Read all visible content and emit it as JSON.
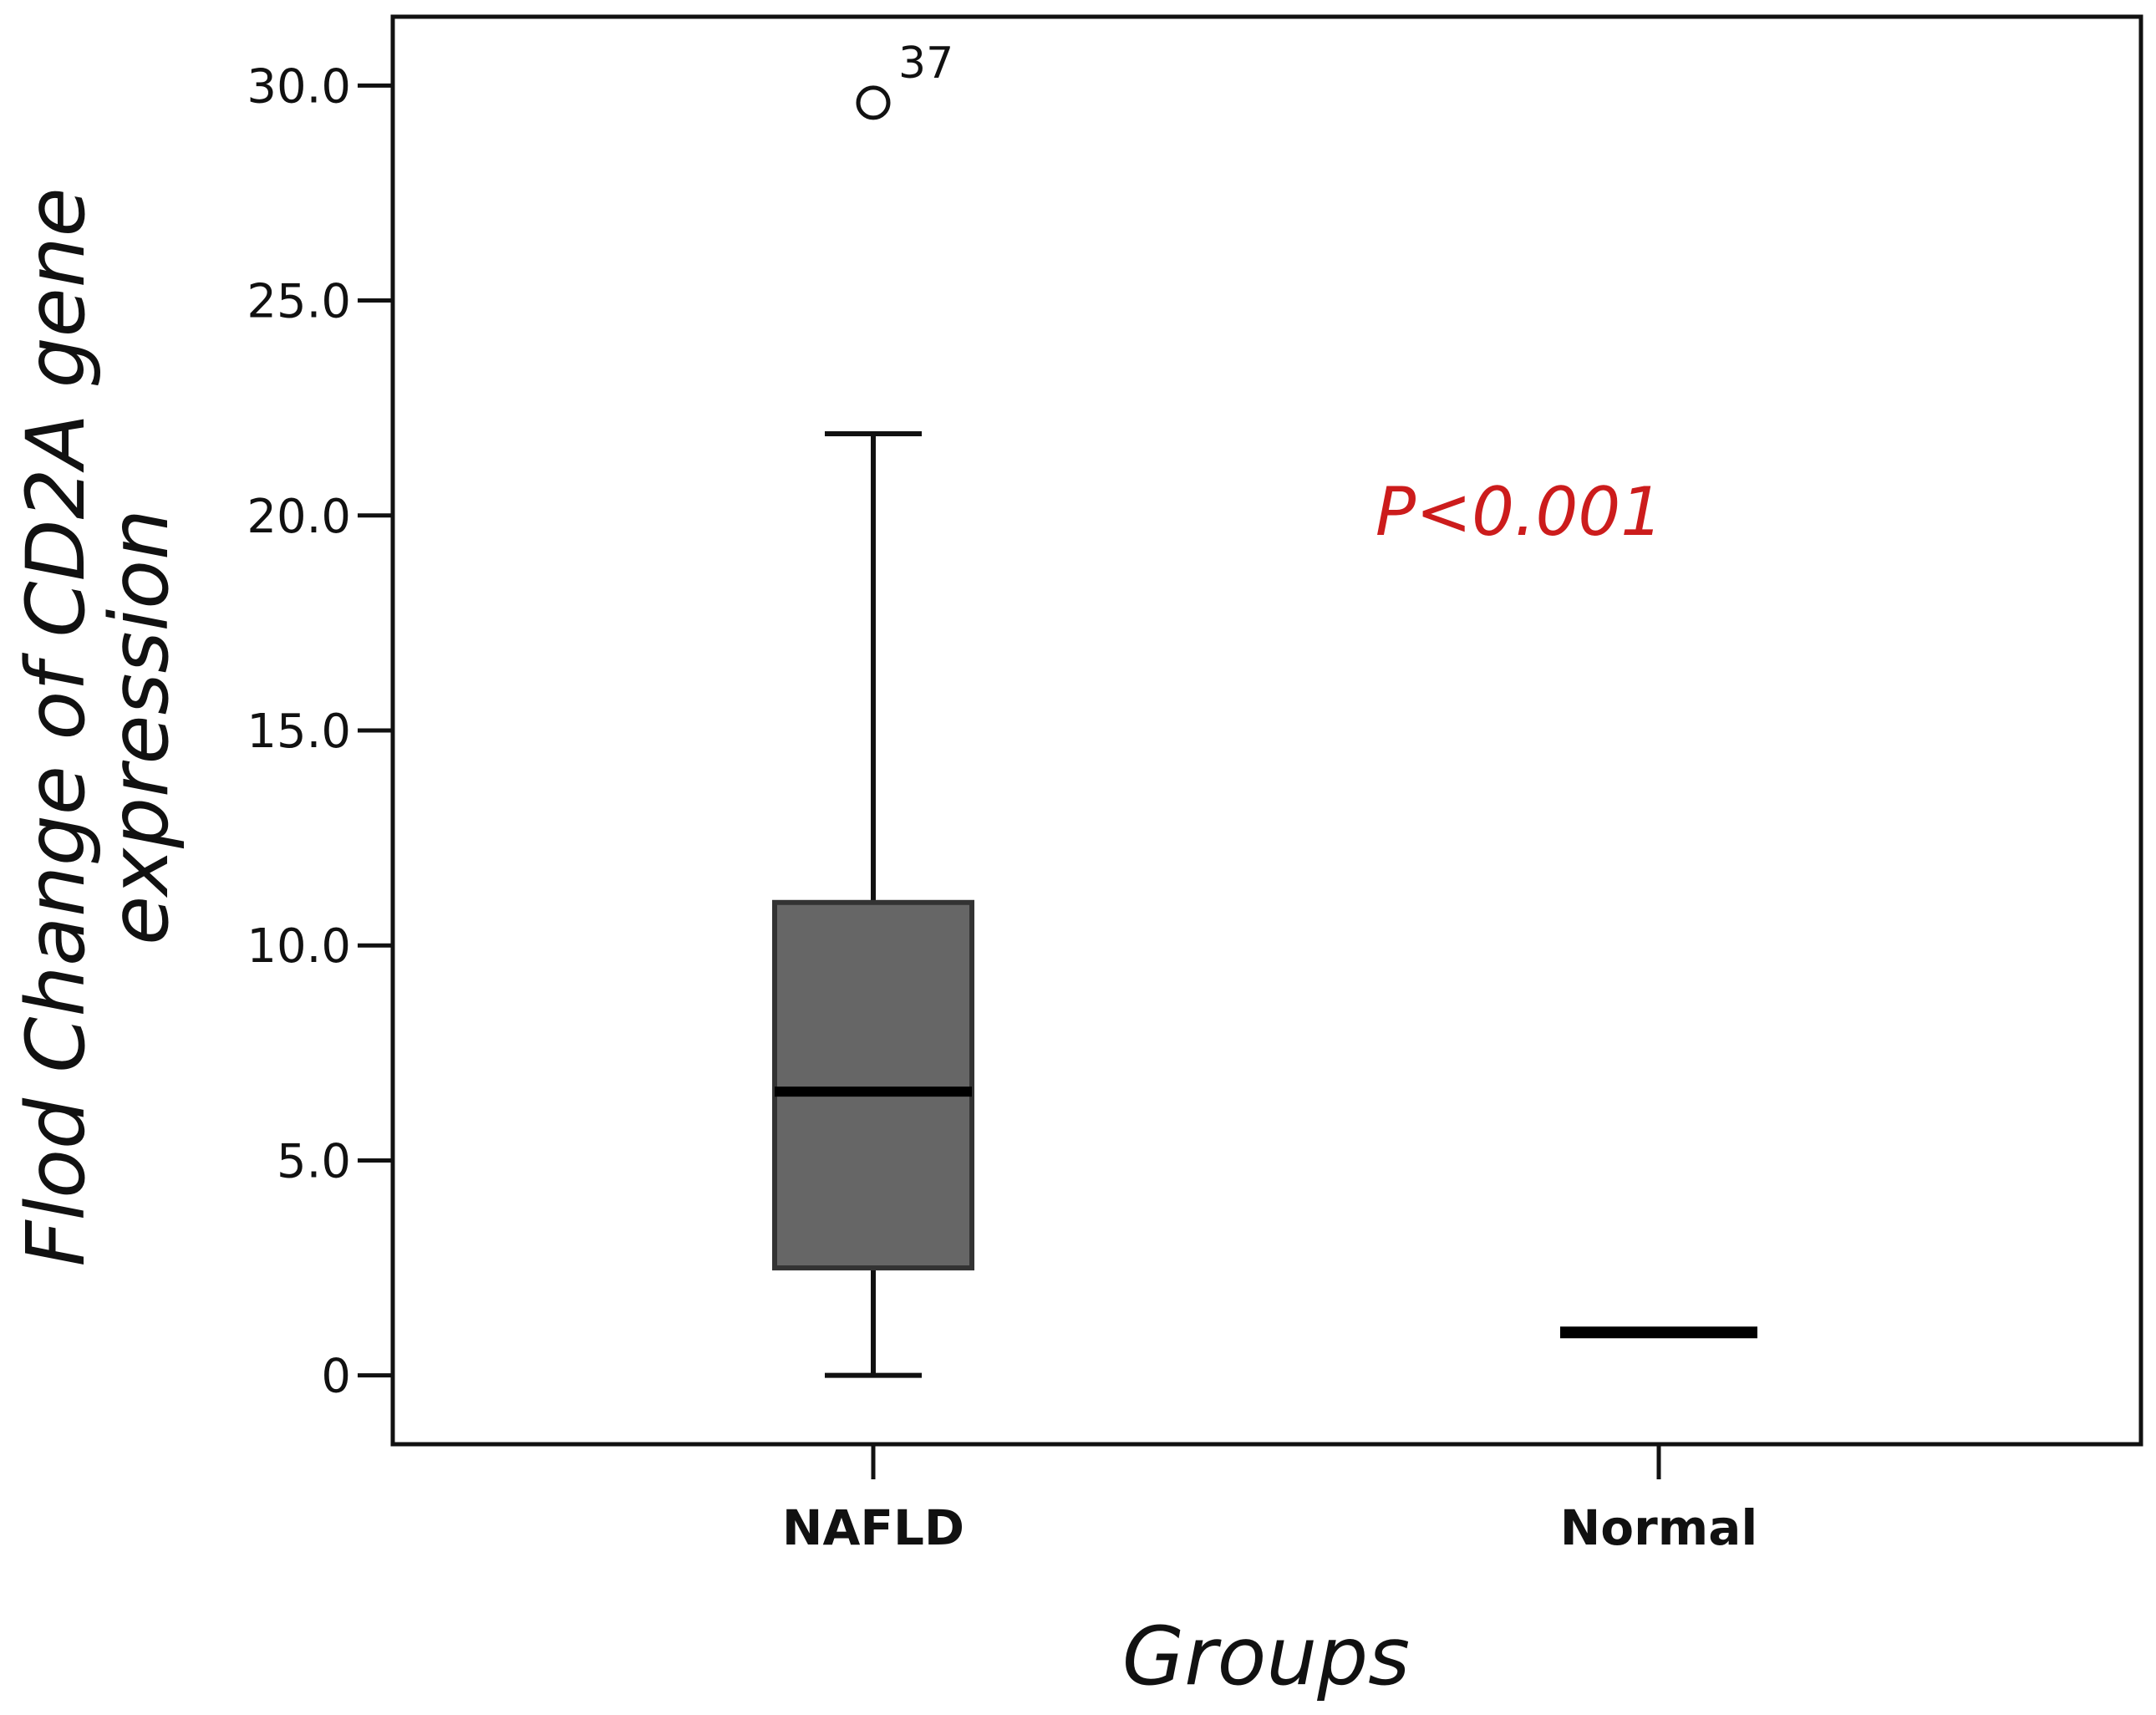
{
  "chart_data": {
    "type": "box",
    "title": "",
    "xlabel": "Groups",
    "ylabel_lines": [
      "Flod Change of CD2A gene",
      "expression"
    ],
    "ylim": [
      -1.6,
      31.6
    ],
    "yticks": [
      {
        "value": 0,
        "label": "0"
      },
      {
        "value": 5,
        "label": "5.0"
      },
      {
        "value": 10,
        "label": "10.0"
      },
      {
        "value": 15,
        "label": "15.0"
      },
      {
        "value": 20,
        "label": "20.0"
      },
      {
        "value": 25,
        "label": "25.0"
      },
      {
        "value": 30,
        "label": "30.0"
      }
    ],
    "categories": [
      "NAFLD",
      "Normal"
    ],
    "boxes": [
      {
        "category": "NAFLD",
        "whisker_low": 0,
        "q1": 2.5,
        "median": 6.6,
        "q3": 11.0,
        "whisker_high": 21.9,
        "outliers": [
          {
            "value": 29.6,
            "label": "37"
          }
        ]
      },
      {
        "category": "Normal",
        "whisker_low": 1.0,
        "q1": 1.0,
        "median": 1.0,
        "q3": 1.0,
        "whisker_high": 1.0,
        "outliers": []
      }
    ],
    "annotation": {
      "text": "P<0.001",
      "x_category": 1.45,
      "y": 19.7
    },
    "colors": {
      "box_fill": "#666666",
      "line": "#111111",
      "annotation": "#cc1c1c"
    }
  }
}
